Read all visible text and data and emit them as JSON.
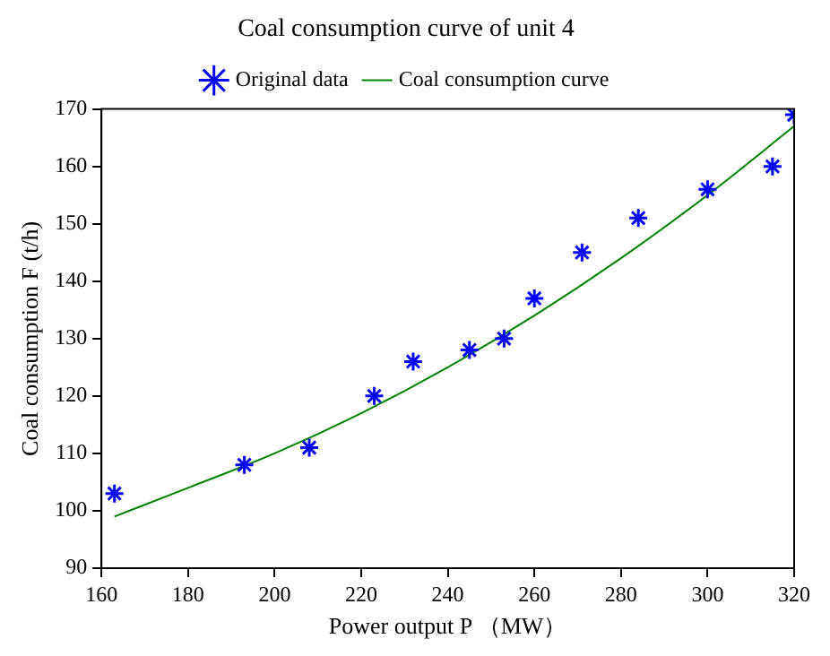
{
  "chart_data": {
    "type": "scatter",
    "title": "Coal consumption curve of unit 4",
    "xlabel": "Power output P （MW）",
    "ylabel": "Coal consumption F (t/h)",
    "xlim": [
      160,
      320
    ],
    "xticks": [
      160,
      180,
      200,
      220,
      240,
      260,
      280,
      300,
      320
    ],
    "ylim": [
      90,
      170
    ],
    "yticks": [
      90,
      100,
      110,
      120,
      130,
      140,
      150,
      160,
      170
    ],
    "legend": "top",
    "grid": false,
    "series": [
      {
        "name": "Original data",
        "marker": "cross",
        "color": "#0000ff",
        "x": [
          163,
          193,
          208,
          223,
          232,
          245,
          253,
          260,
          271,
          284,
          300,
          315,
          320
        ],
        "values": [
          103,
          108,
          111,
          120,
          126,
          128,
          130,
          137,
          145,
          151,
          156,
          160,
          169
        ]
      },
      {
        "name": "Coal consumption curve",
        "type": "line",
        "marker": "none",
        "line_style": "solid",
        "color": "#008000",
        "x": [
          163,
          180,
          200,
          220,
          240,
          260,
          280,
          300,
          320
        ],
        "values": [
          99,
          104,
          110,
          117,
          125,
          134,
          144,
          155,
          167
        ]
      }
    ]
  }
}
